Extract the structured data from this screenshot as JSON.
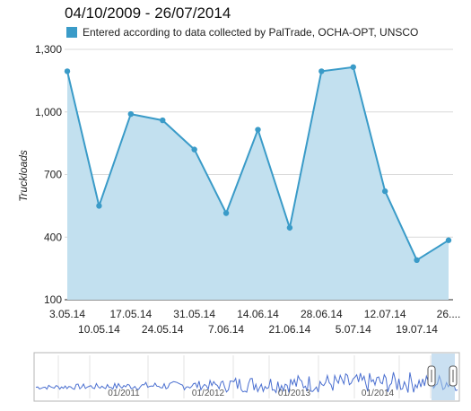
{
  "chart_data": {
    "type": "area",
    "title": "04/10/2009 - 26/07/2014",
    "ylabel": "Truckloads",
    "ylim": [
      100,
      1300
    ],
    "y_ticks": [
      "100",
      "400",
      "700",
      "1,000",
      "1,300"
    ],
    "y_tick_values": [
      100,
      400,
      700,
      1000,
      1300
    ],
    "x_tick_labels": [
      "3.05.14",
      "10.05.14",
      "17.05.14",
      "24.05.14",
      "31.05.14",
      "7.06.14",
      "14.06.14",
      "21.06.14",
      "28.06.14",
      "5.07.14",
      "12.07.14",
      "19.07.14",
      "26...."
    ],
    "grid": true,
    "legend_position": "top",
    "series": [
      {
        "name": "Entered according to data collected by PalTrade, OCHA-OPT, UNSCO",
        "color": "#3a9bc8",
        "fill_color": "#c2e0ef",
        "values": [
          1195,
          550,
          990,
          960,
          820,
          515,
          915,
          445,
          1195,
          1215,
          620,
          290,
          385
        ]
      }
    ]
  },
  "navigator": {
    "labels": [
      "01/2011",
      "01/2012",
      "01/2013",
      "01/2014"
    ],
    "line_color": "#4a6fd0",
    "selection_color": "#9fc7e6"
  }
}
